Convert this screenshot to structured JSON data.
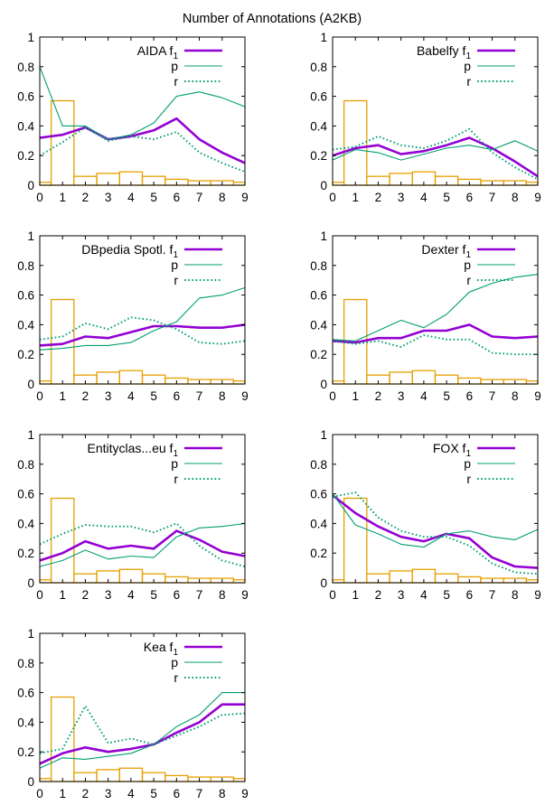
{
  "figure": {
    "title": "Number of Annotations (A2KB)"
  },
  "chart_data": [
    {
      "type": "line",
      "legend_title": "AIDA",
      "x": [
        0,
        1,
        2,
        3,
        4,
        5,
        6,
        7,
        8,
        9
      ],
      "xlim": [
        0,
        9
      ],
      "ylim": [
        0,
        1
      ],
      "xticks": [
        "0",
        "1",
        "2",
        "3",
        "4",
        "5",
        "6",
        "7",
        "8",
        "9"
      ],
      "yticks": [
        "0",
        "0.2",
        "0.4",
        "0.6",
        "0.8",
        "1"
      ],
      "legend_position": "top-right",
      "series": [
        {
          "name": "f1",
          "style": "solid-thick",
          "color": "#9400d3",
          "values": [
            0.32,
            0.34,
            0.39,
            0.31,
            0.33,
            0.37,
            0.45,
            0.31,
            0.22,
            0.15
          ]
        },
        {
          "name": "p",
          "style": "solid-thin",
          "color": "#009e73",
          "values": [
            0.8,
            0.4,
            0.4,
            0.31,
            0.34,
            0.42,
            0.6,
            0.63,
            0.59,
            0.53
          ]
        },
        {
          "name": "r",
          "style": "dotted",
          "color": "#009e73",
          "values": [
            0.2,
            0.29,
            0.39,
            0.3,
            0.33,
            0.31,
            0.36,
            0.22,
            0.15,
            0.09
          ]
        }
      ],
      "histogram": {
        "color": "#e69f00",
        "values": [
          0.02,
          0.57,
          0.06,
          0.08,
          0.09,
          0.06,
          0.04,
          0.03,
          0.03,
          0.02
        ]
      }
    },
    {
      "type": "line",
      "legend_title": "Babelfy",
      "x": [
        0,
        1,
        2,
        3,
        4,
        5,
        6,
        7,
        8,
        9
      ],
      "xlim": [
        0,
        9
      ],
      "ylim": [
        0,
        1
      ],
      "xticks": [
        "0",
        "1",
        "2",
        "3",
        "4",
        "5",
        "6",
        "7",
        "8",
        "9"
      ],
      "yticks": [
        "0",
        "0.2",
        "0.4",
        "0.6",
        "0.8",
        "1"
      ],
      "legend_position": "top-right",
      "series": [
        {
          "name": "f1",
          "style": "solid-thick",
          "color": "#9400d3",
          "values": [
            0.2,
            0.25,
            0.27,
            0.21,
            0.23,
            0.27,
            0.32,
            0.25,
            0.16,
            0.06
          ]
        },
        {
          "name": "p",
          "style": "solid-thin",
          "color": "#009e73",
          "values": [
            0.17,
            0.24,
            0.22,
            0.17,
            0.21,
            0.25,
            0.27,
            0.24,
            0.3,
            0.23
          ]
        },
        {
          "name": "r",
          "style": "dotted",
          "color": "#009e73",
          "values": [
            0.24,
            0.26,
            0.33,
            0.27,
            0.25,
            0.3,
            0.38,
            0.22,
            0.12,
            0.04
          ]
        }
      ],
      "histogram": {
        "color": "#e69f00",
        "values": [
          0.02,
          0.57,
          0.06,
          0.08,
          0.09,
          0.06,
          0.04,
          0.03,
          0.03,
          0.02
        ]
      }
    },
    {
      "type": "line",
      "legend_title": "DBpedia Spotl.",
      "x": [
        0,
        1,
        2,
        3,
        4,
        5,
        6,
        7,
        8,
        9
      ],
      "xlim": [
        0,
        9
      ],
      "ylim": [
        0,
        1
      ],
      "xticks": [
        "0",
        "1",
        "2",
        "3",
        "4",
        "5",
        "6",
        "7",
        "8",
        "9"
      ],
      "yticks": [
        "0",
        "0.2",
        "0.4",
        "0.6",
        "0.8",
        "1"
      ],
      "legend_position": "top-right",
      "series": [
        {
          "name": "f1",
          "style": "solid-thick",
          "color": "#9400d3",
          "values": [
            0.26,
            0.27,
            0.32,
            0.31,
            0.35,
            0.39,
            0.39,
            0.38,
            0.38,
            0.4
          ]
        },
        {
          "name": "p",
          "style": "solid-thin",
          "color": "#009e73",
          "values": [
            0.23,
            0.24,
            0.26,
            0.26,
            0.28,
            0.36,
            0.42,
            0.58,
            0.6,
            0.65
          ]
        },
        {
          "name": "r",
          "style": "dotted",
          "color": "#009e73",
          "values": [
            0.3,
            0.32,
            0.41,
            0.37,
            0.45,
            0.43,
            0.37,
            0.28,
            0.27,
            0.29
          ]
        }
      ],
      "histogram": {
        "color": "#e69f00",
        "values": [
          0.02,
          0.57,
          0.06,
          0.08,
          0.09,
          0.06,
          0.04,
          0.03,
          0.03,
          0.02
        ]
      }
    },
    {
      "type": "line",
      "legend_title": "Dexter",
      "x": [
        0,
        1,
        2,
        3,
        4,
        5,
        6,
        7,
        8,
        9
      ],
      "xlim": [
        0,
        9
      ],
      "ylim": [
        0,
        1
      ],
      "xticks": [
        "0",
        "1",
        "2",
        "3",
        "4",
        "5",
        "6",
        "7",
        "8",
        "9"
      ],
      "yticks": [
        "0",
        "0.2",
        "0.4",
        "0.6",
        "0.8",
        "1"
      ],
      "legend_position": "top-right",
      "series": [
        {
          "name": "f1",
          "style": "solid-thick",
          "color": "#9400d3",
          "values": [
            0.29,
            0.28,
            0.31,
            0.31,
            0.36,
            0.36,
            0.4,
            0.32,
            0.31,
            0.32
          ]
        },
        {
          "name": "p",
          "style": "solid-thin",
          "color": "#009e73",
          "values": [
            0.3,
            0.29,
            0.36,
            0.43,
            0.38,
            0.47,
            0.62,
            0.68,
            0.72,
            0.74
          ]
        },
        {
          "name": "r",
          "style": "dotted",
          "color": "#009e73",
          "values": [
            0.29,
            0.27,
            0.29,
            0.25,
            0.33,
            0.3,
            0.3,
            0.21,
            0.2,
            0.2
          ]
        }
      ],
      "histogram": {
        "color": "#e69f00",
        "values": [
          0.02,
          0.57,
          0.06,
          0.08,
          0.09,
          0.06,
          0.04,
          0.03,
          0.03,
          0.02
        ]
      }
    },
    {
      "type": "line",
      "legend_title": "Entityclas...eu",
      "x": [
        0,
        1,
        2,
        3,
        4,
        5,
        6,
        7,
        8,
        9
      ],
      "xlim": [
        0,
        9
      ],
      "ylim": [
        0,
        1
      ],
      "xticks": [
        "0",
        "1",
        "2",
        "3",
        "4",
        "5",
        "6",
        "7",
        "8",
        "9"
      ],
      "yticks": [
        "0",
        "0.2",
        "0.4",
        "0.6",
        "0.8",
        "1"
      ],
      "legend_position": "top-right",
      "series": [
        {
          "name": "f1",
          "style": "solid-thick",
          "color": "#9400d3",
          "values": [
            0.15,
            0.2,
            0.28,
            0.23,
            0.25,
            0.23,
            0.35,
            0.29,
            0.21,
            0.18
          ]
        },
        {
          "name": "p",
          "style": "solid-thin",
          "color": "#009e73",
          "values": [
            0.11,
            0.15,
            0.22,
            0.16,
            0.18,
            0.17,
            0.31,
            0.37,
            0.38,
            0.4
          ]
        },
        {
          "name": "r",
          "style": "dotted",
          "color": "#009e73",
          "values": [
            0.26,
            0.33,
            0.39,
            0.38,
            0.38,
            0.34,
            0.4,
            0.25,
            0.15,
            0.11
          ]
        }
      ],
      "histogram": {
        "color": "#e69f00",
        "values": [
          0.02,
          0.57,
          0.06,
          0.08,
          0.09,
          0.06,
          0.04,
          0.03,
          0.03,
          0.02
        ]
      }
    },
    {
      "type": "line",
      "legend_title": "FOX",
      "x": [
        0,
        1,
        2,
        3,
        4,
        5,
        6,
        7,
        8,
        9
      ],
      "xlim": [
        0,
        9
      ],
      "ylim": [
        0,
        1
      ],
      "xticks": [
        "0",
        "1",
        "2",
        "3",
        "4",
        "5",
        "6",
        "7",
        "8",
        "9"
      ],
      "yticks": [
        "0",
        "0.2",
        "0.4",
        "0.6",
        "0.8",
        "1"
      ],
      "legend_position": "top-right",
      "series": [
        {
          "name": "f1",
          "style": "solid-thick",
          "color": "#9400d3",
          "values": [
            0.59,
            0.47,
            0.38,
            0.31,
            0.28,
            0.33,
            0.3,
            0.17,
            0.11,
            0.1
          ]
        },
        {
          "name": "p",
          "style": "solid-thin",
          "color": "#009e73",
          "values": [
            0.6,
            0.39,
            0.33,
            0.26,
            0.24,
            0.33,
            0.35,
            0.31,
            0.29,
            0.36
          ]
        },
        {
          "name": "r",
          "style": "dotted",
          "color": "#009e73",
          "values": [
            0.58,
            0.61,
            0.44,
            0.35,
            0.31,
            0.31,
            0.25,
            0.13,
            0.07,
            0.06
          ]
        }
      ],
      "histogram": {
        "color": "#e69f00",
        "values": [
          0.02,
          0.57,
          0.06,
          0.08,
          0.09,
          0.06,
          0.04,
          0.03,
          0.03,
          0.02
        ]
      }
    },
    {
      "type": "line",
      "legend_title": "Kea",
      "x": [
        0,
        1,
        2,
        3,
        4,
        5,
        6,
        7,
        8,
        9
      ],
      "xlim": [
        0,
        9
      ],
      "ylim": [
        0,
        1
      ],
      "xticks": [
        "0",
        "1",
        "2",
        "3",
        "4",
        "5",
        "6",
        "7",
        "8",
        "9"
      ],
      "yticks": [
        "0",
        "0.2",
        "0.4",
        "0.6",
        "0.8",
        "1"
      ],
      "legend_position": "top-right",
      "series": [
        {
          "name": "f1",
          "style": "solid-thick",
          "color": "#9400d3",
          "values": [
            0.12,
            0.19,
            0.23,
            0.2,
            0.22,
            0.25,
            0.33,
            0.4,
            0.52,
            0.52
          ]
        },
        {
          "name": "p",
          "style": "solid-thin",
          "color": "#009e73",
          "values": [
            0.09,
            0.16,
            0.15,
            0.17,
            0.19,
            0.25,
            0.37,
            0.45,
            0.6,
            0.6
          ]
        },
        {
          "name": "r",
          "style": "dotted",
          "color": "#009e73",
          "values": [
            0.19,
            0.22,
            0.51,
            0.26,
            0.29,
            0.25,
            0.31,
            0.37,
            0.45,
            0.46
          ]
        }
      ],
      "histogram": {
        "color": "#e69f00",
        "values": [
          0.02,
          0.57,
          0.06,
          0.08,
          0.09,
          0.06,
          0.04,
          0.03,
          0.03,
          0.02
        ]
      }
    }
  ]
}
